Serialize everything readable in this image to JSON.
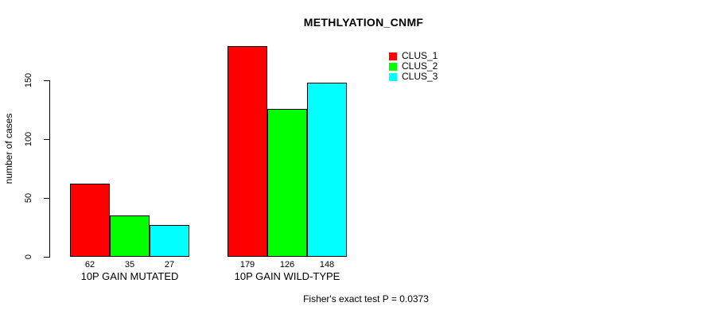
{
  "title": "METHLYATION_CNMF",
  "y_axis": {
    "label": "number of cases"
  },
  "footer": "Fisher's exact test P = 0.0373",
  "chart_data": {
    "type": "bar",
    "title": "METHLYATION_CNMF",
    "xlabel": "",
    "ylabel": "number of cases",
    "categories": [
      "10P GAIN MUTATED",
      "10P GAIN WILD-TYPE"
    ],
    "series": [
      {
        "name": "CLUS_1",
        "color": "#ff0000",
        "values": [
          62,
          179
        ]
      },
      {
        "name": "CLUS_2",
        "color": "#00ff00",
        "values": [
          35,
          126
        ]
      },
      {
        "name": "CLUS_3",
        "color": "#00ffff",
        "values": [
          27,
          148
        ]
      }
    ],
    "bar_value_labels": [
      [
        62,
        35,
        27
      ],
      [
        179,
        126,
        148
      ]
    ],
    "yticks": [
      0,
      50,
      100,
      150
    ],
    "ylim": [
      0,
      185
    ],
    "grid": false,
    "legend_position": "top-right",
    "annotation": "Fisher's exact test P = 0.0373"
  }
}
